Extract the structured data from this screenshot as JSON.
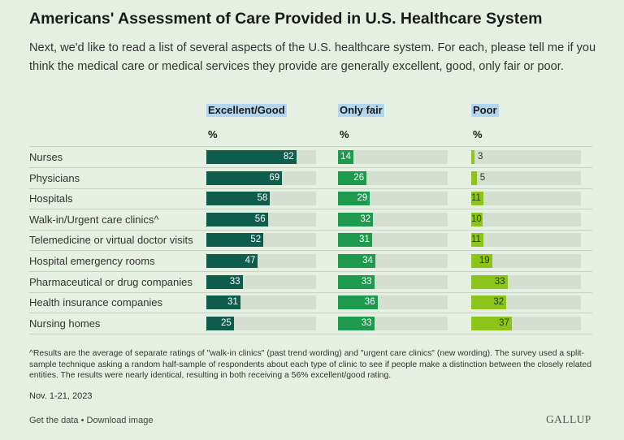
{
  "title": "Americans' Assessment of Care Provided in U.S. Healthcare System",
  "subtitle": "Next, we'd like to read a list of several aspects of the U.S. healthcare system. For each, please tell me if you think the medical care or medical services they provide are generally excellent, good, only fair or poor.",
  "footnote": "^Results are the average of separate ratings of \"walk-in clinics\" (past trend wording) and \"urgent care clinics\" (new wording). The survey used a split-sample technique asking a random half-sample of respondents about each type of clinic to see if people make a distinction between the closely related entities. The results were nearly identical, resulting in both receiving a 56% excellent/good rating.",
  "date": "Nov. 1-21, 2023",
  "links": "Get the data • Download image",
  "brand": "GALLUP",
  "colors": {
    "background": "#e6f0e2",
    "track": "#d4dfd1",
    "highlight": "#b3d6ee"
  },
  "chart_data": {
    "type": "bar",
    "orientation": "horizontal",
    "unit": "%",
    "xlim": [
      0,
      100
    ],
    "categories": [
      "Nurses",
      "Physicians",
      "Hospitals",
      "Walk-in/Urgent care clinics^",
      "Telemedicine or virtual doctor visits",
      "Hospital emergency rooms",
      "Pharmaceutical or drug companies",
      "Health insurance companies",
      "Nursing homes"
    ],
    "series": [
      {
        "name": "Excellent/Good",
        "color": "#0e5c4c",
        "values": [
          82,
          69,
          58,
          56,
          52,
          47,
          33,
          31,
          25
        ]
      },
      {
        "name": "Only fair",
        "color": "#1e9a4f",
        "values": [
          14,
          26,
          29,
          32,
          31,
          34,
          33,
          36,
          33
        ]
      },
      {
        "name": "Poor",
        "color": "#8cc41c",
        "values": [
          3,
          5,
          11,
          10,
          11,
          19,
          33,
          32,
          37
        ]
      }
    ]
  }
}
